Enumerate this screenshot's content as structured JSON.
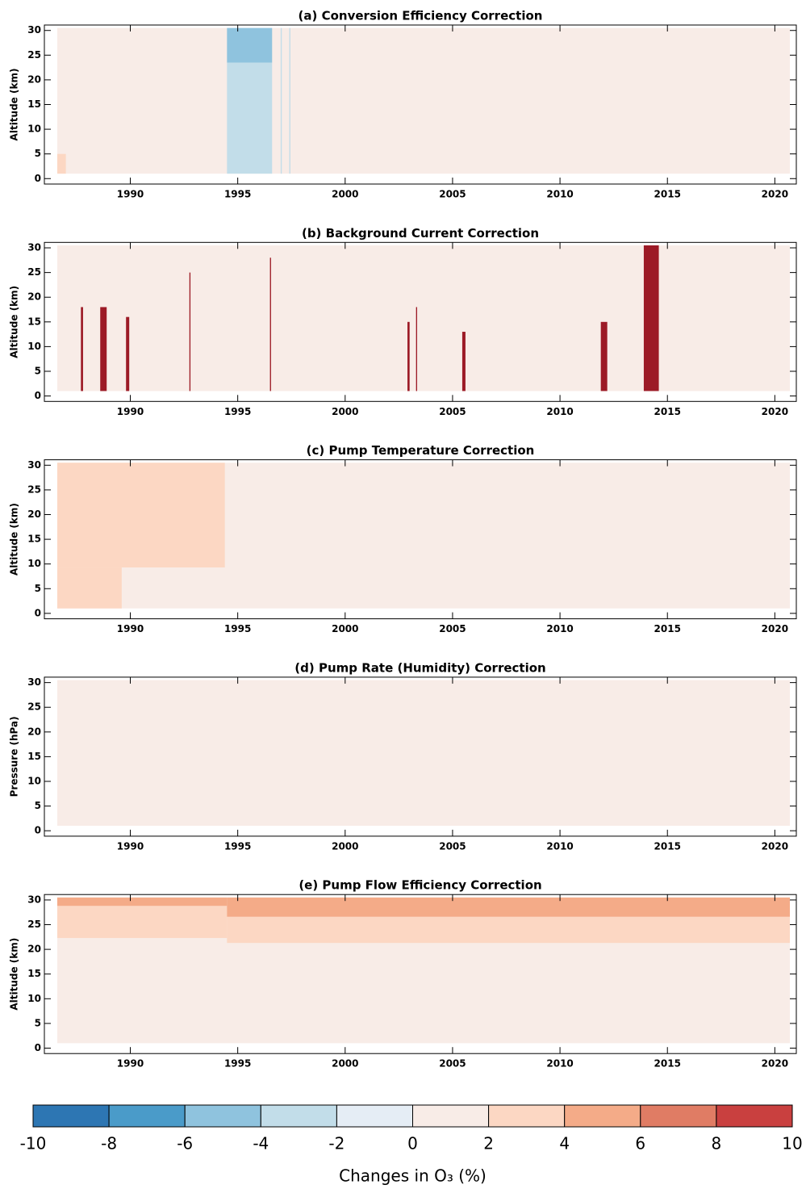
{
  "chart_data": [
    {
      "type": "heatmap",
      "title": "(a) Conversion Efficiency Correction",
      "ylabel": "Altitude (km)",
      "xlim": [
        1986,
        2021
      ],
      "ylim": [
        -1.1,
        31.1
      ],
      "xticks": [
        1990,
        1995,
        2000,
        2005,
        2010,
        2015,
        2020
      ],
      "yticks": [
        0,
        5,
        10,
        15,
        20,
        25,
        30
      ],
      "regions": [
        {
          "x": [
            1986.6,
            2020.7
          ],
          "y": [
            1,
            30.5
          ],
          "value": 1
        },
        {
          "x": [
            1986.6,
            1987.0
          ],
          "y": [
            1,
            5
          ],
          "value": 3
        },
        {
          "x": [
            1994.5,
            1996.6
          ],
          "y": [
            1,
            23.5
          ],
          "value": -4
        },
        {
          "x": [
            1994.5,
            1996.6
          ],
          "y": [
            23.5,
            30.5
          ],
          "value": -5
        },
        {
          "x": [
            1997.0,
            1997.05
          ],
          "y": [
            1,
            30.5
          ],
          "value": -3
        },
        {
          "x": [
            1997.4,
            1997.45
          ],
          "y": [
            1,
            30.5
          ],
          "value": -3
        }
      ]
    },
    {
      "type": "heatmap",
      "title": "(b) Background Current Correction",
      "ylabel": "Altitude (km)",
      "xlim": [
        1986,
        2021
      ],
      "ylim": [
        -1.1,
        31.1
      ],
      "xticks": [
        1990,
        1995,
        2000,
        2005,
        2010,
        2015,
        2020
      ],
      "yticks": [
        0,
        5,
        10,
        15,
        20,
        25,
        30
      ],
      "regions": [
        {
          "x": [
            1986.6,
            2020.7
          ],
          "y": [
            1,
            30.5
          ],
          "value": 1
        },
        {
          "x": [
            1987.7,
            1987.8
          ],
          "y": [
            1,
            18
          ],
          "value": 9
        },
        {
          "x": [
            1988.6,
            1988.9
          ],
          "y": [
            1,
            18
          ],
          "value": 9
        },
        {
          "x": [
            1989.8,
            1989.95
          ],
          "y": [
            1,
            16
          ],
          "value": 9
        },
        {
          "x": [
            1992.75,
            1992.8
          ],
          "y": [
            1,
            25
          ],
          "value": 9
        },
        {
          "x": [
            1996.5,
            1996.55
          ],
          "y": [
            1,
            28
          ],
          "value": 9
        },
        {
          "x": [
            2002.9,
            2003.0
          ],
          "y": [
            1,
            15
          ],
          "value": 9
        },
        {
          "x": [
            2003.3,
            2003.35
          ],
          "y": [
            1,
            18
          ],
          "value": 9
        },
        {
          "x": [
            2005.45,
            2005.6
          ],
          "y": [
            1,
            13
          ],
          "value": 9
        },
        {
          "x": [
            2011.9,
            2012.2
          ],
          "y": [
            1,
            15
          ],
          "value": 9
        },
        {
          "x": [
            2013.9,
            2014.6
          ],
          "y": [
            1,
            30.5
          ],
          "value": 9
        }
      ]
    },
    {
      "type": "heatmap",
      "title": "(c) Pump Temperature Correction",
      "ylabel": "Altitude (km)",
      "xlim": [
        1986,
        2021
      ],
      "ylim": [
        -1.1,
        31.1
      ],
      "xticks": [
        1990,
        1995,
        2000,
        2005,
        2010,
        2015,
        2020
      ],
      "yticks": [
        0,
        5,
        10,
        15,
        20,
        25,
        30
      ],
      "regions": [
        {
          "x": [
            1986.6,
            2020.7
          ],
          "y": [
            1,
            30.5
          ],
          "value": 1
        },
        {
          "x": [
            1986.6,
            1994.4
          ],
          "y": [
            9.3,
            30.5
          ],
          "value": 3
        },
        {
          "x": [
            1986.6,
            1989.6
          ],
          "y": [
            1,
            9.3
          ],
          "value": 3
        }
      ]
    },
    {
      "type": "heatmap",
      "title": "(d) Pump Rate (Humidity) Correction",
      "ylabel": "Pressure (hPa)",
      "xlim": [
        1986,
        2021
      ],
      "ylim": [
        -1.1,
        31.1
      ],
      "xticks": [
        1990,
        1995,
        2000,
        2005,
        2010,
        2015,
        2020
      ],
      "yticks": [
        0,
        5,
        10,
        15,
        20,
        25,
        30
      ],
      "regions": [
        {
          "x": [
            1986.6,
            2020.7
          ],
          "y": [
            1,
            30.5
          ],
          "value": 1
        }
      ]
    },
    {
      "type": "heatmap",
      "title": "(e) Pump Flow Efficiency Correction",
      "ylabel": "Altitude (km)",
      "xlim": [
        1986,
        2021
      ],
      "ylim": [
        -1.1,
        31.1
      ],
      "xticks": [
        1990,
        1995,
        2000,
        2005,
        2010,
        2015,
        2020
      ],
      "yticks": [
        0,
        5,
        10,
        15,
        20,
        25,
        30
      ],
      "regions": [
        {
          "x": [
            1986.6,
            2020.7
          ],
          "y": [
            1,
            30.5
          ],
          "value": 1
        },
        {
          "x": [
            1986.6,
            1994.5
          ],
          "y": [
            22.3,
            28.8
          ],
          "value": 3
        },
        {
          "x": [
            1986.6,
            1994.5
          ],
          "y": [
            28.8,
            30.5
          ],
          "value": 5
        },
        {
          "x": [
            1994.5,
            2020.7
          ],
          "y": [
            21.3,
            26.6
          ],
          "value": 3
        },
        {
          "x": [
            1994.5,
            2020.7
          ],
          "y": [
            26.6,
            30.5
          ],
          "value": 5
        }
      ]
    },
    {
      "type": "colorbar",
      "xlabel": "Changes in O₃ (%)",
      "bins": [
        -10,
        -8,
        -6,
        -4,
        -2,
        0,
        2,
        4,
        6,
        8,
        10
      ],
      "colors": [
        "#2d76b3",
        "#4a9bc9",
        "#8fc3de",
        "#c2dde9",
        "#e5edf5",
        "#f8ece7",
        "#fcd7c3",
        "#f4ab88",
        "#e07c64",
        "#c9403f"
      ]
    }
  ]
}
